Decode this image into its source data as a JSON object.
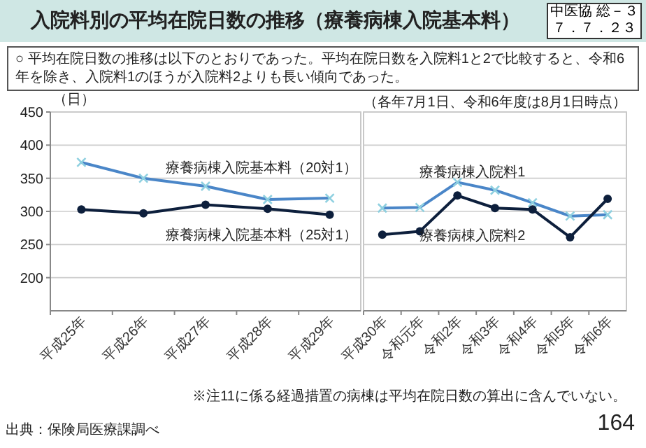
{
  "chart_data": [
    {
      "type": "line",
      "title": "入院料別の平均在院日数の推移（療養病棟入院基本料）",
      "subtitle": "○ 平均在院日数の推移は以下のとおりであった。平均在院日数を入院料1と2で比較すると、令和6年を除き、入院料1のほうが入院料2よりも長い傾向であった。",
      "ylabel": "（日）",
      "annotations": [
        "中医協 総－３",
        "７．７．２３",
        "出典：保険局医療課調べ",
        "164"
      ],
      "categories": [
        "平成25年",
        "平成26年",
        "平成27年",
        "平成28年",
        "平成29年"
      ],
      "series": [
        {
          "name": "療養病棟入院基本料（20対1）",
          "color": "#4a86c8",
          "marker": "cross",
          "values": [
            374,
            350,
            338,
            318,
            320
          ]
        },
        {
          "name": "療養病棟入院基本料（25対1）",
          "color": "#0d1f3c",
          "marker": "circle",
          "values": [
            303,
            297,
            310,
            304,
            295
          ]
        }
      ],
      "ylim": [
        150,
        450
      ],
      "yticks": [
        200,
        250,
        300,
        350,
        400,
        450
      ],
      "grid": "y",
      "legend": false,
      "line_style": "solid"
    },
    {
      "type": "line",
      "annotations": [
        "（各年7月1日、令和6年度は8月1日時点）",
        "※注11に係る経過措置の病棟は平均在院日数の算出に含んでいない。"
      ],
      "categories": [
        "平成30年",
        "令和元年",
        "令和2年",
        "令和3年",
        "令和4年",
        "令和5年",
        "令和6年"
      ],
      "series": [
        {
          "name": "療養病棟入院料1",
          "color": "#4a86c8",
          "marker": "cross",
          "values": [
            305,
            306,
            344,
            332,
            313,
            293,
            295
          ]
        },
        {
          "name": "療養病棟入院料2",
          "color": "#0d1f3c",
          "marker": "circle",
          "values": [
            265,
            270,
            324,
            305,
            303,
            261,
            319
          ]
        }
      ],
      "ylim": [
        150,
        450
      ],
      "yticks": [
        200,
        250,
        300,
        350,
        400,
        450
      ],
      "grid": "y",
      "legend": false,
      "line_style": "solid",
      "tick_labels": "x"
    }
  ]
}
